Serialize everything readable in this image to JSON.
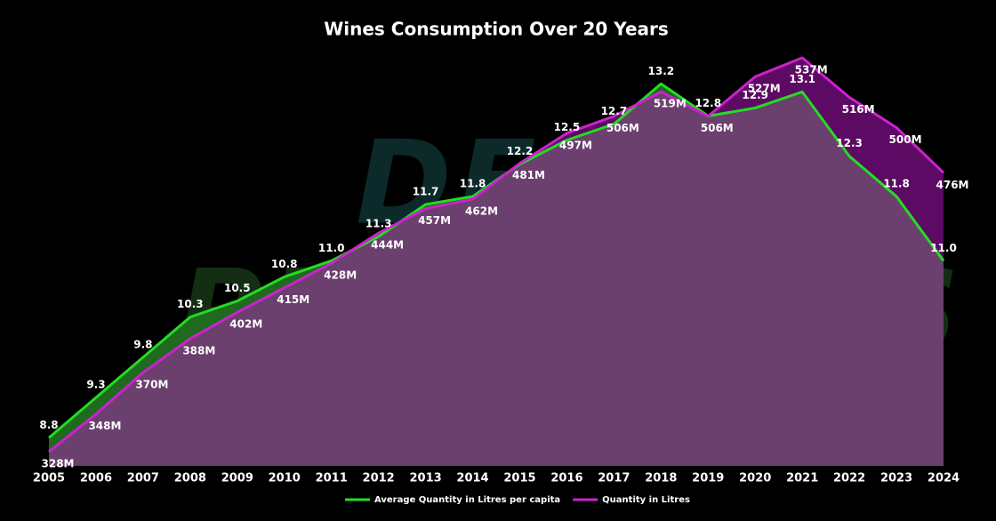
{
  "chart_data": {
    "type": "area",
    "title": "Wines Consumption Over 20 Years",
    "watermark": [
      "DEIFIED.",
      "PRO.GRESS"
    ],
    "categories": [
      "2005",
      "2006",
      "2007",
      "2008",
      "2009",
      "2010",
      "2011",
      "2012",
      "2013",
      "2014",
      "2015",
      "2016",
      "2017",
      "2018",
      "2019",
      "2020",
      "2021",
      "2022",
      "2023",
      "2024"
    ],
    "ylim": [
      320.5,
      548.8
    ],
    "y2lim": [
      8.45,
      13.8
    ],
    "legend": "bottom",
    "series": [
      {
        "name": "Average Quantity in Litres per capita",
        "color": "#22dd22",
        "fill": "#1f6a1f",
        "axis": "y2",
        "values": [
          8.8,
          9.3,
          9.8,
          10.3,
          10.5,
          10.8,
          11.0,
          11.3,
          11.7,
          11.8,
          12.2,
          12.5,
          12.7,
          13.2,
          12.8,
          12.9,
          13.1,
          12.3,
          11.8,
          11.0
        ],
        "value_labels": [
          "8.8",
          "9.3",
          "9.8",
          "10.3",
          "10.5",
          "10.8",
          "11.0",
          "11.3",
          "11.7",
          "11.8",
          "12.2",
          "12.5",
          "12.7",
          "13.2",
          "12.8",
          "12.9",
          "13.1",
          "12.3",
          "11.8",
          "11.0"
        ]
      },
      {
        "name": "Quantity in Litres",
        "color": "#cc22cc",
        "fill": "#5c0a63",
        "values": [
          328,
          348,
          370,
          388,
          402,
          415,
          428,
          444,
          457,
          462,
          481,
          497,
          506,
          519,
          506,
          527,
          537,
          516,
          500,
          476
        ],
        "value_labels": [
          "328M",
          "348M",
          "370M",
          "388M",
          "402M",
          "415M",
          "428M",
          "444M",
          "457M",
          "462M",
          "481M",
          "497M",
          "506M",
          "519M",
          "506M",
          "527M",
          "537M",
          "516M",
          "500M",
          "476M"
        ]
      }
    ]
  }
}
